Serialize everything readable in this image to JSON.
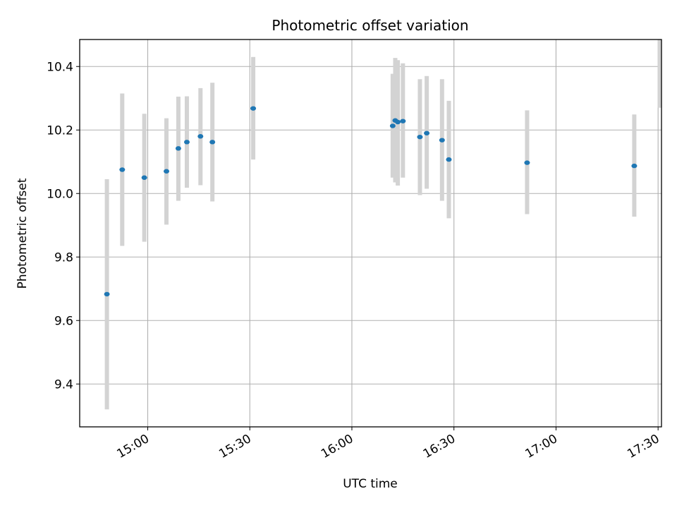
{
  "chart_data": {
    "type": "scatter",
    "title": "Photometric offset variation",
    "xlabel": "UTC time",
    "ylabel": "Photometric offset",
    "xlim": [
      "14:40",
      "17:31"
    ],
    "ylim": [
      9.265,
      10.485
    ],
    "grid": true,
    "x_ticks": [
      "15:00",
      "15:30",
      "16:00",
      "16:30",
      "17:00",
      "17:30"
    ],
    "y_ticks": [
      "9.4",
      "9.6",
      "9.8",
      "10.0",
      "10.2",
      "10.4"
    ],
    "marker_color": "#1f77b4",
    "errorbar_color": "#d3d3d3",
    "points": [
      {
        "time": "14:48:00",
        "y": 9.683,
        "ymin": 9.32,
        "ymax": 10.045
      },
      {
        "time": "14:52:30",
        "y": 10.075,
        "ymin": 9.835,
        "ymax": 10.315
      },
      {
        "time": "14:59:00",
        "y": 10.05,
        "ymin": 9.848,
        "ymax": 10.251
      },
      {
        "time": "15:05:30",
        "y": 10.07,
        "ymin": 9.902,
        "ymax": 10.237
      },
      {
        "time": "15:09:00",
        "y": 10.142,
        "ymin": 9.977,
        "ymax": 10.305
      },
      {
        "time": "15:11:30",
        "y": 10.162,
        "ymin": 10.018,
        "ymax": 10.306
      },
      {
        "time": "15:15:30",
        "y": 10.18,
        "ymin": 10.026,
        "ymax": 10.332
      },
      {
        "time": "15:19:00",
        "y": 10.162,
        "ymin": 9.975,
        "ymax": 10.349
      },
      {
        "time": "15:31:00",
        "y": 10.268,
        "ymin": 10.107,
        "ymax": 10.43
      },
      {
        "time": "16:12:00",
        "y": 10.213,
        "ymin": 10.05,
        "ymax": 10.377
      },
      {
        "time": "16:12:45",
        "y": 10.23,
        "ymin": 10.035,
        "ymax": 10.427
      },
      {
        "time": "16:13:30",
        "y": 10.225,
        "ymin": 10.025,
        "ymax": 10.42
      },
      {
        "time": "16:15:00",
        "y": 10.228,
        "ymin": 10.05,
        "ymax": 10.41
      },
      {
        "time": "16:20:00",
        "y": 10.178,
        "ymin": 9.995,
        "ymax": 10.36
      },
      {
        "time": "16:22:00",
        "y": 10.19,
        "ymin": 10.015,
        "ymax": 10.37
      },
      {
        "time": "16:26:30",
        "y": 10.168,
        "ymin": 9.977,
        "ymax": 10.36
      },
      {
        "time": "16:28:30",
        "y": 10.107,
        "ymin": 9.922,
        "ymax": 10.292
      },
      {
        "time": "16:51:30",
        "y": 10.097,
        "ymin": 9.935,
        "ymax": 10.262
      },
      {
        "time": "17:23:00",
        "y": 10.087,
        "ymin": 9.927,
        "ymax": 10.249
      },
      {
        "time": "17:30:30",
        "y": null,
        "ymin": 10.27,
        "ymax": 10.485
      }
    ]
  }
}
